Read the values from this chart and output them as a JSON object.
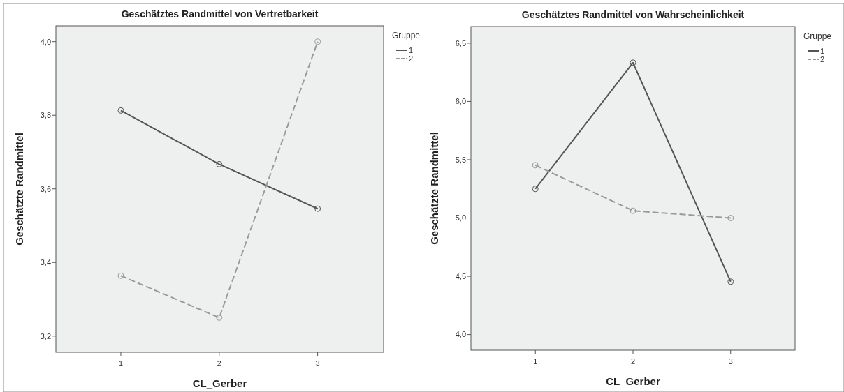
{
  "chart_data": [
    {
      "type": "line",
      "title": "Geschätztes Randmittel von Vertretbarkeit",
      "xlabel": "CL_Gerber",
      "ylabel": "Geschätzte Randmittel",
      "legend_title": "Gruppe",
      "legend": "top right",
      "marker": "circle",
      "grid": false,
      "x": [
        1,
        2,
        3
      ],
      "xlim": [
        0.34,
        3.67
      ],
      "xticks": [
        1,
        2,
        3
      ],
      "ylim": [
        3.156,
        4.043
      ],
      "yticks": [
        {
          "value": 3.2,
          "label": "3,2"
        },
        {
          "value": 3.4,
          "label": "3,4"
        },
        {
          "value": 3.6,
          "label": "3,6"
        },
        {
          "value": 3.8,
          "label": "3,8"
        },
        {
          "value": 4.0,
          "label": "4,0"
        }
      ],
      "series": [
        {
          "name": "1",
          "color": "#555555",
          "line_style": "solid",
          "values": [
            3.813,
            3.667,
            3.546
          ]
        },
        {
          "name": "2",
          "color": "#999999",
          "line_style": "dashed",
          "values": [
            3.364,
            3.25,
            4.0
          ]
        }
      ]
    },
    {
      "type": "line",
      "title": "Geschätztes Randmittel von Wahrscheinlichkeit",
      "xlabel": "CL_Gerber",
      "ylabel": "Geschätzte Randmittel",
      "legend_title": "Gruppe",
      "legend": "top right",
      "marker": "circle",
      "grid": false,
      "x": [
        1,
        2,
        3
      ],
      "xlim": [
        0.34,
        3.66
      ],
      "xticks": [
        1,
        2,
        3
      ],
      "ylim": [
        3.866,
        6.643
      ],
      "yticks": [
        {
          "value": 4.0,
          "label": "4,0"
        },
        {
          "value": 4.5,
          "label": "4,5"
        },
        {
          "value": 5.0,
          "label": "5,0"
        },
        {
          "value": 5.5,
          "label": "5,5"
        },
        {
          "value": 6.0,
          "label": "6,0"
        },
        {
          "value": 6.5,
          "label": "6,5"
        }
      ],
      "series": [
        {
          "name": "1",
          "color": "#555555",
          "line_style": "solid",
          "values": [
            5.25,
            6.333,
            4.454
          ]
        },
        {
          "name": "2",
          "color": "#999999",
          "line_style": "dashed",
          "values": [
            5.453,
            5.062,
            5.0
          ]
        }
      ]
    }
  ]
}
